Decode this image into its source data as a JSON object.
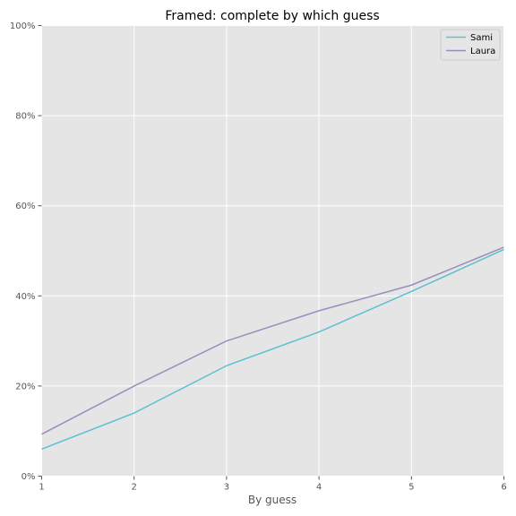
{
  "chart_data": {
    "type": "line",
    "title": "Framed: complete by which guess",
    "xlabel": "By guess",
    "ylabel": "",
    "x": [
      1,
      2,
      3,
      4,
      5,
      6
    ],
    "xlim": [
      1,
      6
    ],
    "ylim": [
      0,
      100
    ],
    "xticks": [
      1,
      2,
      3,
      4,
      5,
      6
    ],
    "xtick_labels": [
      "1",
      "2",
      "3",
      "4",
      "5",
      "6"
    ],
    "yticks": [
      0,
      20,
      40,
      60,
      80,
      100
    ],
    "ytick_labels": [
      "0%",
      "20%",
      "40%",
      "60%",
      "80%",
      "100%"
    ],
    "grid": true,
    "legend_position": "top-right",
    "background": "#e5e5e5",
    "series": [
      {
        "name": "Sami",
        "color": "#5bc0d0",
        "values": [
          6,
          14,
          24.5,
          32,
          41,
          50.3
        ]
      },
      {
        "name": "Laura",
        "color": "#988ebb",
        "values": [
          9.3,
          20,
          30,
          36.7,
          42.4,
          50.8
        ]
      }
    ]
  }
}
